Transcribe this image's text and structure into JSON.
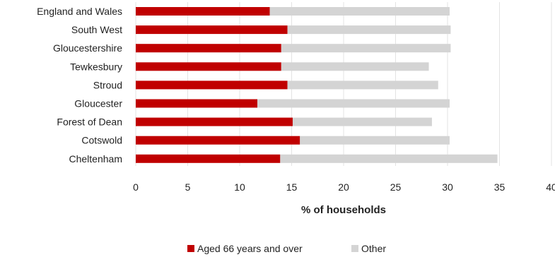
{
  "chart_data": {
    "type": "bar",
    "orientation": "horizontal",
    "stacked": true,
    "categories": [
      "England and Wales",
      "South West",
      "Gloucestershire",
      "Tewkesbury",
      "Stroud",
      "Gloucester",
      "Forest of Dean",
      "Cotswold",
      "Cheltenham"
    ],
    "series": [
      {
        "name": "Aged 66 years and over",
        "color": "#c00000",
        "values": [
          12.9,
          14.6,
          14.0,
          14.0,
          14.6,
          11.7,
          15.1,
          15.8,
          13.9
        ]
      },
      {
        "name": "Other",
        "color": "#d4d4d4",
        "values": [
          17.3,
          15.7,
          16.3,
          14.2,
          14.5,
          18.5,
          13.4,
          14.4,
          20.9
        ]
      }
    ],
    "xlabel": "% of households",
    "ylabel": "",
    "xlim": [
      0,
      40
    ],
    "xticks": [
      "0",
      "5",
      "10",
      "15",
      "20",
      "25",
      "30",
      "35",
      "40"
    ],
    "grid": "vertical",
    "legend_position": "bottom"
  }
}
